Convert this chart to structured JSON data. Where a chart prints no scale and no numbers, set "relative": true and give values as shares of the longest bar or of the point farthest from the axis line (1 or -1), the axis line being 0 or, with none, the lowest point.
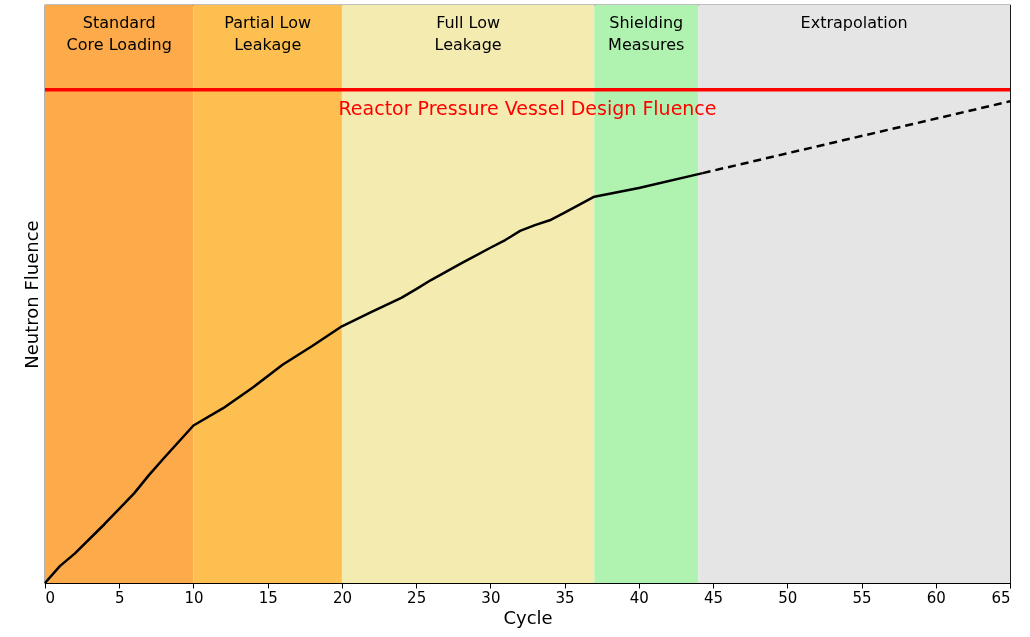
{
  "chart_data": {
    "type": "line",
    "relative": true,
    "xlabel": "Cycle",
    "ylabel": "Neutron Fluence",
    "xlim": [
      0,
      65
    ],
    "xticks": [
      0,
      5,
      10,
      15,
      20,
      25,
      30,
      35,
      40,
      45,
      50,
      55,
      60,
      65
    ],
    "series": [
      {
        "color": "#000000",
        "line_style": "solid",
        "x": [
          0,
          1,
          2,
          4,
          6,
          7,
          8,
          10,
          12,
          14,
          16,
          18,
          20,
          22,
          24,
          25,
          26,
          28,
          30,
          31,
          32,
          33,
          34,
          35,
          37,
          40,
          44.3
        ],
        "values": [
          0,
          0.035,
          0.061,
          0.122,
          0.186,
          0.224,
          0.259,
          0.327,
          0.363,
          0.406,
          0.453,
          0.492,
          0.533,
          0.563,
          0.592,
          0.61,
          0.629,
          0.663,
          0.696,
          0.712,
          0.731,
          0.743,
          0.753,
          0.769,
          0.802,
          0.82,
          0.851
        ]
      },
      {
        "color": "#000000",
        "line_style": "dashed",
        "x": [
          44.3,
          65
        ],
        "values": [
          0.851,
          1.0
        ]
      }
    ],
    "bands": [
      {
        "axis": "x",
        "from": 0,
        "to": 10,
        "label": "Standard\nCore Loading",
        "color": "#fdab4a"
      },
      {
        "axis": "x",
        "from": 10,
        "to": 20,
        "label": "Partial Low\nLeakage",
        "color": "#fdbf4f"
      },
      {
        "axis": "x",
        "from": 20,
        "to": 37,
        "label": "Full Low\nLeakage",
        "color": "#f4ebb0"
      },
      {
        "axis": "x",
        "from": 37,
        "to": 44,
        "label": "Shielding\nMeasures",
        "color": "#b0f2b0"
      },
      {
        "axis": "x",
        "from": 44,
        "to": 65,
        "label": "Extrapolation",
        "color": "#e5e5e5"
      }
    ],
    "ref_lines": [
      {
        "axis": "y",
        "value": 1.024,
        "label": "Reactor Pressure Vessel Design Fluence",
        "color": "#ff0000"
      }
    ],
    "grid": false
  }
}
